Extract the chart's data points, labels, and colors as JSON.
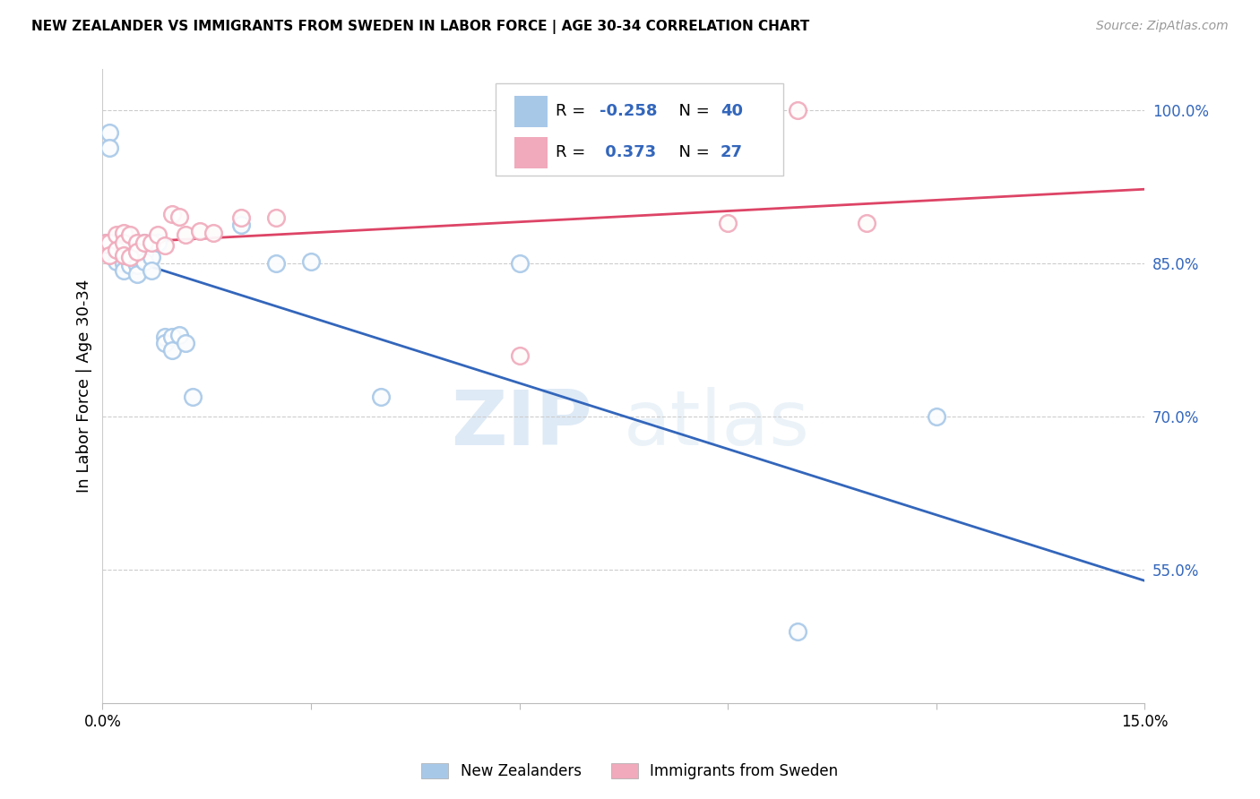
{
  "title": "NEW ZEALANDER VS IMMIGRANTS FROM SWEDEN IN LABOR FORCE | AGE 30-34 CORRELATION CHART",
  "source": "Source: ZipAtlas.com",
  "ylabel": "In Labor Force | Age 30-34",
  "xlim": [
    0.0,
    0.15
  ],
  "ylim": [
    0.42,
    1.04
  ],
  "yticks": [
    0.55,
    0.7,
    0.85,
    1.0
  ],
  "ytick_labels": [
    "55.0%",
    "70.0%",
    "85.0%",
    "100.0%"
  ],
  "xtick_vals": [
    0.0,
    0.03,
    0.06,
    0.09,
    0.12,
    0.15
  ],
  "xtick_labels": [
    "0.0%",
    "",
    "",
    "",
    "",
    "15.0%"
  ],
  "legend_nz": "New Zealanders",
  "legend_sw": "Immigrants from Sweden",
  "R_nz": -0.258,
  "N_nz": 40,
  "R_sw": 0.373,
  "N_sw": 27,
  "nz_color": "#a8c8e8",
  "sw_color": "#f0aabb",
  "nz_line_color": "#3366bb",
  "sw_line_color": "#dd4466",
  "watermark_zip": "ZIP",
  "watermark_atlas": "atlas",
  "nz_x": [
    0.0005,
    0.001,
    0.001,
    0.0015,
    0.002,
    0.002,
    0.002,
    0.003,
    0.003,
    0.003,
    0.003,
    0.003,
    0.004,
    0.004,
    0.004,
    0.004,
    0.005,
    0.005,
    0.005,
    0.005,
    0.006,
    0.006,
    0.006,
    0.007,
    0.007,
    0.008,
    0.009,
    0.009,
    0.01,
    0.01,
    0.011,
    0.012,
    0.013,
    0.02,
    0.025,
    0.03,
    0.04,
    0.06,
    0.1,
    0.12
  ],
  "nz_y": [
    0.87,
    0.978,
    0.963,
    0.87,
    0.87,
    0.86,
    0.852,
    0.87,
    0.862,
    0.856,
    0.85,
    0.843,
    0.87,
    0.862,
    0.855,
    0.848,
    0.862,
    0.855,
    0.848,
    0.84,
    0.87,
    0.86,
    0.852,
    0.856,
    0.843,
    0.87,
    0.778,
    0.772,
    0.778,
    0.765,
    0.78,
    0.772,
    0.72,
    0.888,
    0.85,
    0.852,
    0.72,
    0.85,
    0.49,
    0.7
  ],
  "sw_x": [
    0.0005,
    0.001,
    0.001,
    0.002,
    0.002,
    0.003,
    0.003,
    0.003,
    0.004,
    0.004,
    0.005,
    0.005,
    0.006,
    0.007,
    0.008,
    0.009,
    0.01,
    0.011,
    0.012,
    0.014,
    0.016,
    0.02,
    0.025,
    0.06,
    0.09,
    0.1,
    0.11
  ],
  "sw_y": [
    0.87,
    0.87,
    0.858,
    0.878,
    0.863,
    0.88,
    0.87,
    0.858,
    0.878,
    0.856,
    0.87,
    0.862,
    0.87,
    0.87,
    0.878,
    0.868,
    0.898,
    0.896,
    0.878,
    0.882,
    0.88,
    0.895,
    0.895,
    0.76,
    0.89,
    1.0,
    0.89
  ]
}
